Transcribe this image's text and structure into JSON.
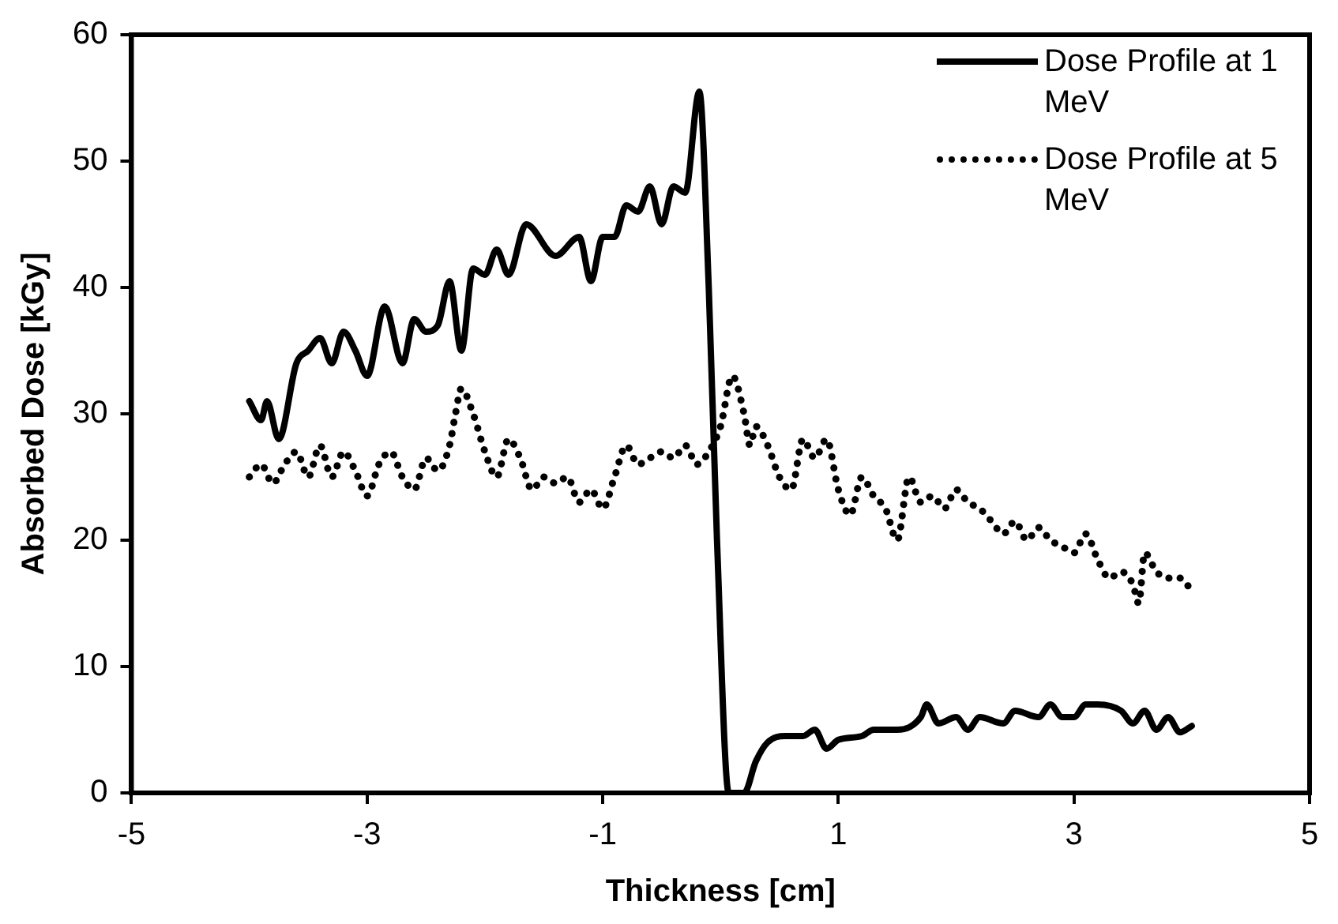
{
  "chart_data": {
    "type": "line",
    "xlabel": "Thickness [cm]",
    "ylabel": "Absorbed Dose [kGy]",
    "xlim": [
      -5,
      5
    ],
    "xticks": [
      -5,
      -3,
      -1,
      1,
      3,
      5
    ],
    "ylim": [
      0,
      60
    ],
    "yticks": [
      0,
      10,
      20,
      30,
      40,
      50,
      60
    ],
    "grid": false,
    "legend": "top right",
    "marker": "none",
    "series": [
      {
        "name": "Dose Profile at 1 MeV",
        "color": "#000000",
        "line_style": "solid",
        "x": [
          -4.0,
          -3.9,
          -3.85,
          -3.75,
          -3.6,
          -3.5,
          -3.4,
          -3.3,
          -3.2,
          -3.1,
          -3.0,
          -2.85,
          -2.7,
          -2.6,
          -2.5,
          -2.4,
          -2.3,
          -2.2,
          -2.1,
          -2.0,
          -1.9,
          -1.8,
          -1.65,
          -1.4,
          -1.2,
          -1.1,
          -1.0,
          -0.9,
          -0.8,
          -0.7,
          -0.6,
          -0.5,
          -0.4,
          -0.3,
          -0.18,
          -0.1,
          -0.03,
          0.07,
          0.2,
          0.3,
          0.4,
          0.55,
          0.7,
          0.8,
          0.9,
          1.0,
          1.2,
          1.3,
          1.5,
          1.7,
          1.75,
          1.85,
          2.0,
          2.1,
          2.2,
          2.4,
          2.5,
          2.7,
          2.8,
          2.9,
          3.0,
          3.1,
          3.2,
          3.4,
          3.5,
          3.6,
          3.7,
          3.8,
          3.9,
          4.0
        ],
        "values": [
          31,
          29.5,
          31,
          28,
          34,
          35,
          36,
          34,
          36.5,
          35,
          33,
          38.5,
          34,
          37.5,
          36.5,
          37,
          40.5,
          35,
          41.5,
          41,
          43,
          41,
          45,
          42.5,
          44,
          40.5,
          44,
          44,
          46.5,
          46,
          48,
          45,
          48,
          47.5,
          55.5,
          40,
          20,
          0,
          0,
          2.5,
          4,
          4.5,
          4.5,
          5,
          3.5,
          4.2,
          4.5,
          5,
          5,
          6,
          7,
          5.5,
          6,
          5,
          6,
          5.5,
          6.5,
          6,
          7,
          6,
          6,
          7,
          7,
          6.5,
          5.5,
          6.5,
          5,
          6,
          4.8,
          5.3
        ]
      },
      {
        "name": "Dose Profile at 5 MeV",
        "color": "#000000",
        "line_style": "dotted",
        "x": [
          -4.0,
          -3.9,
          -3.8,
          -3.7,
          -3.6,
          -3.5,
          -3.4,
          -3.3,
          -3.2,
          -3.1,
          -3.0,
          -2.9,
          -2.8,
          -2.7,
          -2.6,
          -2.5,
          -2.4,
          -2.3,
          -2.25,
          -2.2,
          -2.1,
          -2.0,
          -1.9,
          -1.8,
          -1.7,
          -1.6,
          -1.5,
          -1.4,
          -1.3,
          -1.2,
          -1.1,
          -1.0,
          -0.9,
          -0.8,
          -0.7,
          -0.6,
          -0.5,
          -0.4,
          -0.3,
          -0.2,
          -0.1,
          0.0,
          0.1,
          0.2,
          0.25,
          0.3,
          0.4,
          0.5,
          0.6,
          0.7,
          0.8,
          0.9,
          1.0,
          1.1,
          1.2,
          1.3,
          1.4,
          1.5,
          1.6,
          1.7,
          1.8,
          1.9,
          2.0,
          2.1,
          2.2,
          2.3,
          2.4,
          2.5,
          2.6,
          2.7,
          2.8,
          2.9,
          3.0,
          3.1,
          3.2,
          3.3,
          3.4,
          3.5,
          3.55,
          3.6,
          3.7,
          3.8,
          3.9,
          4.0
        ],
        "values": [
          25,
          26,
          24.5,
          26,
          27,
          25,
          27.5,
          25,
          27,
          25.5,
          23.5,
          26,
          27,
          25,
          24,
          26.5,
          25.5,
          27.5,
          30,
          32,
          30,
          27,
          25,
          28,
          26.5,
          24,
          25,
          24.5,
          25,
          23,
          24,
          22.5,
          25,
          27.5,
          26,
          26.5,
          27,
          26.5,
          27.5,
          26,
          27,
          29,
          33,
          30,
          27.5,
          29,
          27.5,
          25,
          24,
          28,
          26.5,
          28,
          24,
          22,
          25,
          23.5,
          22.5,
          20,
          25,
          23,
          23.5,
          22.5,
          24,
          23,
          22.5,
          21.5,
          20.5,
          21.5,
          20,
          21,
          20,
          19.5,
          19,
          20.5,
          18.5,
          17,
          17.5,
          16.5,
          15,
          19,
          17.5,
          17,
          17,
          16
        ]
      }
    ]
  }
}
